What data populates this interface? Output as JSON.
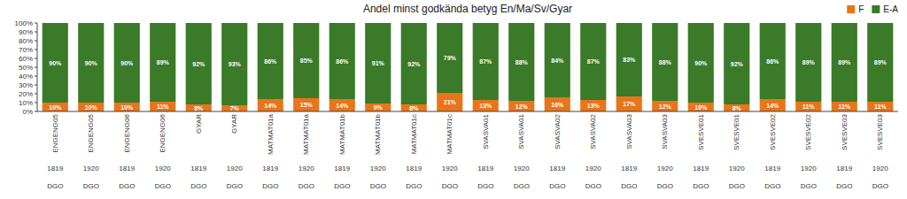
{
  "chart_data": {
    "type": "bar",
    "stacked": true,
    "title": "Andel minst godkända betyg En/Ma/Sv/Gyar",
    "categories": [
      "ENGENG05",
      "ENGENG05",
      "ENGENG06",
      "ENGENG06",
      "GYAR",
      "GYAR",
      "MATMAT01a",
      "MATMAT01a",
      "MATMAT01b",
      "MATMAT01b",
      "MATMAT01c",
      "MATMAT01c",
      "SVASVA01",
      "SVASVA01",
      "SVASVA02",
      "SVASVA02",
      "SVASVA03",
      "SVASVA03",
      "SVESVE01",
      "SVESVE01",
      "SVESVE02",
      "SVESVE02",
      "SVESVE03",
      "SVESVE03"
    ],
    "years": [
      "1819",
      "1920",
      "1819",
      "1920",
      "1819",
      "1920",
      "1819",
      "1920",
      "1819",
      "1920",
      "1819",
      "1920",
      "1819",
      "1920",
      "1819",
      "1920",
      "1819",
      "1920",
      "1819",
      "1920",
      "1819",
      "1920",
      "1819",
      "1920"
    ],
    "sublabels": [
      "DGO",
      "DGO",
      "DGO",
      "DGO",
      "DGO",
      "DGO",
      "DGO",
      "DGO",
      "DGO",
      "DGO",
      "DGO",
      "DGO",
      "DGO",
      "DGO",
      "DGO",
      "DGO",
      "DGO",
      "DGO",
      "DGO",
      "DGO",
      "DGO",
      "DGO",
      "DGO",
      "DGO"
    ],
    "series": [
      {
        "name": "F",
        "color": "#E8751A",
        "values": [
          10,
          10,
          10,
          11,
          8,
          7,
          14,
          15,
          14,
          9,
          8,
          21,
          13,
          12,
          16,
          13,
          17,
          12,
          10,
          8,
          14,
          11,
          11,
          11
        ],
        "value_labels": [
          "10%",
          "10%",
          "10%",
          "11%",
          "8%",
          "7%",
          "14%",
          "15%",
          "14%",
          "9%",
          "8%",
          "21%",
          "13%",
          "12%",
          "16%",
          "13%",
          "17%",
          "12%",
          "10%",
          "8%",
          "14%",
          "11%",
          "11%",
          "11%"
        ]
      },
      {
        "name": "E-A",
        "color": "#3A7A28",
        "values": [
          90,
          90,
          90,
          89,
          92,
          93,
          86,
          85,
          86,
          91,
          92,
          79,
          87,
          88,
          84,
          87,
          83,
          88,
          90,
          92,
          86,
          89,
          89,
          89
        ],
        "value_labels": [
          "90%",
          "90%",
          "90%",
          "89%",
          "92%",
          "93%",
          "86%",
          "85%",
          "86%",
          "91%",
          "92%",
          "79%",
          "87%",
          "88%",
          "84%",
          "87%",
          "83%",
          "88%",
          "90%",
          "92%",
          "86%",
          "89%",
          "89%",
          "89%"
        ]
      }
    ],
    "ylim": [
      0,
      100
    ],
    "yticks": [
      {
        "value": 0,
        "label": "0%"
      },
      {
        "value": 10,
        "label": "10%"
      },
      {
        "value": 20,
        "label": "20%"
      },
      {
        "value": 30,
        "label": "30%"
      },
      {
        "value": 40,
        "label": "40%"
      },
      {
        "value": 50,
        "label": "50%"
      },
      {
        "value": 60,
        "label": "60%"
      },
      {
        "value": 70,
        "label": "70%"
      },
      {
        "value": 80,
        "label": "80%"
      },
      {
        "value": 90,
        "label": "90%"
      },
      {
        "value": 100,
        "label": "100%"
      }
    ],
    "data_labels": true,
    "grid": false,
    "legend": "upper right"
  }
}
